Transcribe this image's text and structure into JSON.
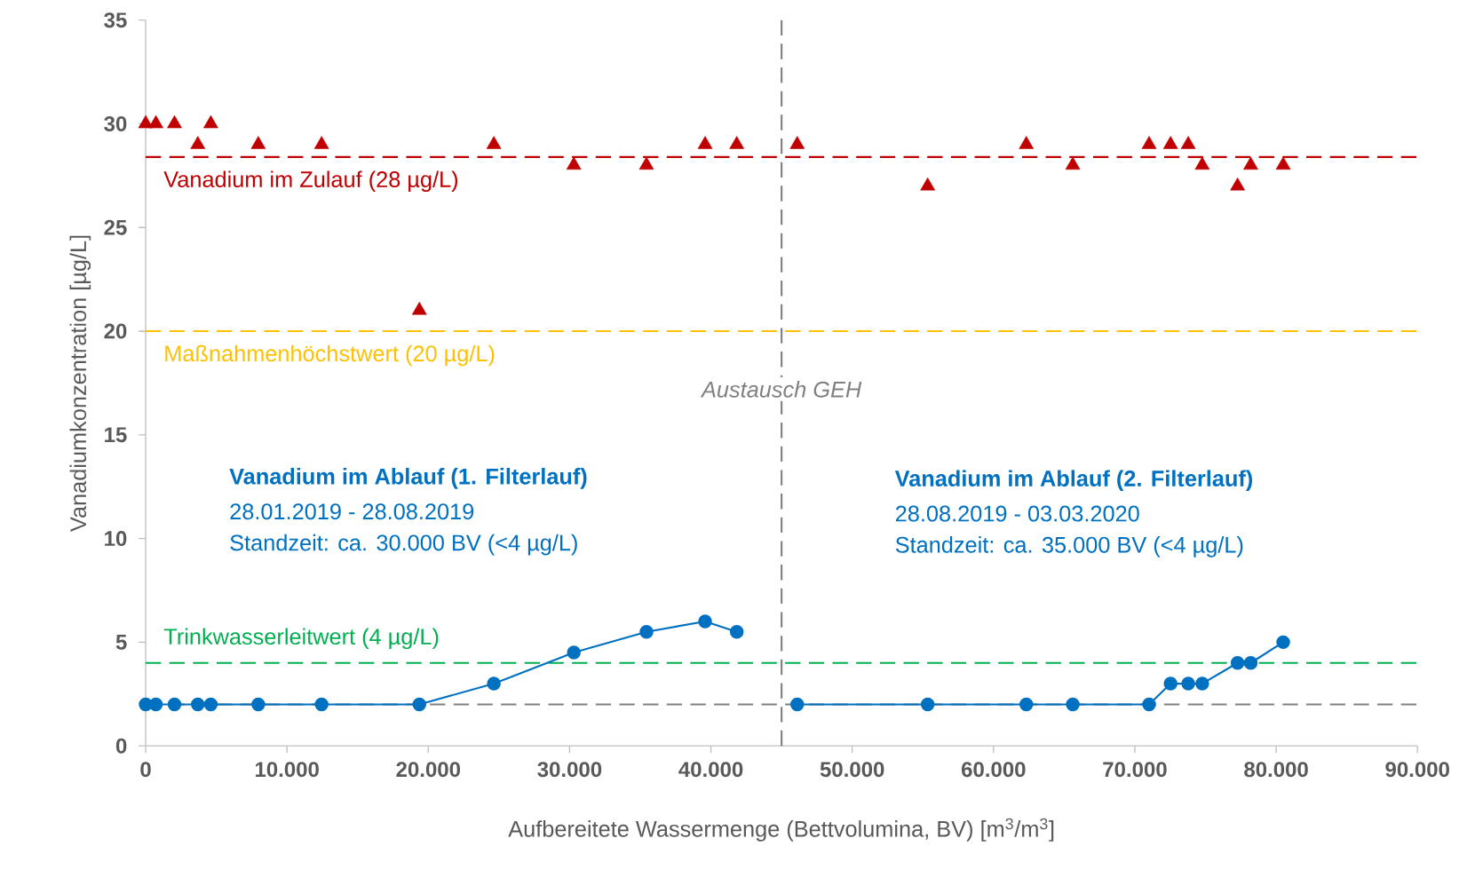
{
  "chart_data": {
    "type": "line",
    "xlabel": "Aufbereitete Wassermenge (Bettvolumina, BV)   [m$^{3}$/m$^{3}$]",
    "ylabel": "Vanadiumkonzentration  [µg/L]",
    "xlim": [
      0,
      90000
    ],
    "ylim": [
      0,
      35
    ],
    "xticks": [
      0,
      {
        "value": 10000,
        "label": "10.000"
      },
      {
        "value": 20000,
        "label": "20.000"
      },
      {
        "value": 30000,
        "label": "30.000"
      },
      {
        "value": 40000,
        "label": "40.000"
      },
      {
        "value": 50000,
        "label": "50.000"
      },
      {
        "value": 60000,
        "label": "60.000"
      },
      {
        "value": 70000,
        "label": "70.000"
      },
      {
        "value": 80000,
        "label": "80.000"
      },
      {
        "value": 90000,
        "label": "90.000"
      }
    ],
    "yticks": [
      0,
      5,
      10,
      15,
      20,
      25,
      30,
      35
    ],
    "grid": false,
    "series": [
      {
        "type": "scatter",
        "marker": "triangle",
        "color": "#c00000",
        "x": [
          0,
          725,
          2040,
          3690,
          4610,
          7970,
          12450,
          19370,
          24640,
          30300,
          35440,
          39590,
          41830,
          46110,
          55340,
          62320,
          65610,
          71010,
          72530,
          73780,
          74770,
          77270,
          78200,
          80500
        ],
        "values": [
          30,
          30,
          30,
          29,
          30,
          29,
          29,
          21,
          29,
          28,
          28,
          29,
          29,
          29,
          27,
          29,
          28,
          29,
          29,
          29,
          28,
          27,
          28,
          28
        ]
      },
      {
        "marker": "circle",
        "color": "#0070c0",
        "x": [
          0,
          725,
          2040,
          3690,
          4610,
          7970,
          12450,
          19370,
          24640,
          30300,
          35440,
          39590,
          41830
        ],
        "values": [
          2,
          2,
          2,
          2,
          2,
          2,
          2,
          2,
          3,
          4.5,
          5.5,
          6,
          5.5
        ]
      },
      {
        "marker": "circle",
        "color": "#0070c0",
        "x": [
          46110,
          55340,
          62320,
          65610,
          71010,
          72530,
          73780,
          74770,
          77270,
          78200,
          80500
        ],
        "values": [
          2,
          2,
          2,
          2,
          2,
          3,
          3,
          3,
          4,
          4,
          5
        ]
      }
    ],
    "ref_lines": [
      {
        "axis": "y",
        "value": 28.4,
        "label": "Vanadium im Zulauf (28 µg/L)",
        "color": "#c00000",
        "line_style": "dashed"
      },
      {
        "axis": "y",
        "value": 20,
        "label": "Maßnahmenhöchstwert (20 µg/L)",
        "color": "#ffc000",
        "line_style": "dashed"
      },
      {
        "axis": "y",
        "value": 4,
        "label": "Trinkwasserleitwert (4 µg/L)",
        "color": "#00b050",
        "line_style": "dashed"
      },
      {
        "axis": "y",
        "value": 2,
        "color": "#808080",
        "line_style": "dashed"
      },
      {
        "axis": "x",
        "value": 45000,
        "label": "Austausch GEH",
        "color": "#808080",
        "line_style": "dashed"
      }
    ],
    "annotations": [
      "Vanadium im Ablauf (1. Filterlauf)",
      "28.01.2019 - 28.08.2019",
      "Standzeit: ca. 30.000 BV  (<4 µg/L)",
      "Vanadium im Ablauf (2. Filterlauf)",
      "28.08.2019 - 03.03.2020",
      "Standzeit: ca. 35.000 BV  (<4 µg/L)"
    ]
  }
}
